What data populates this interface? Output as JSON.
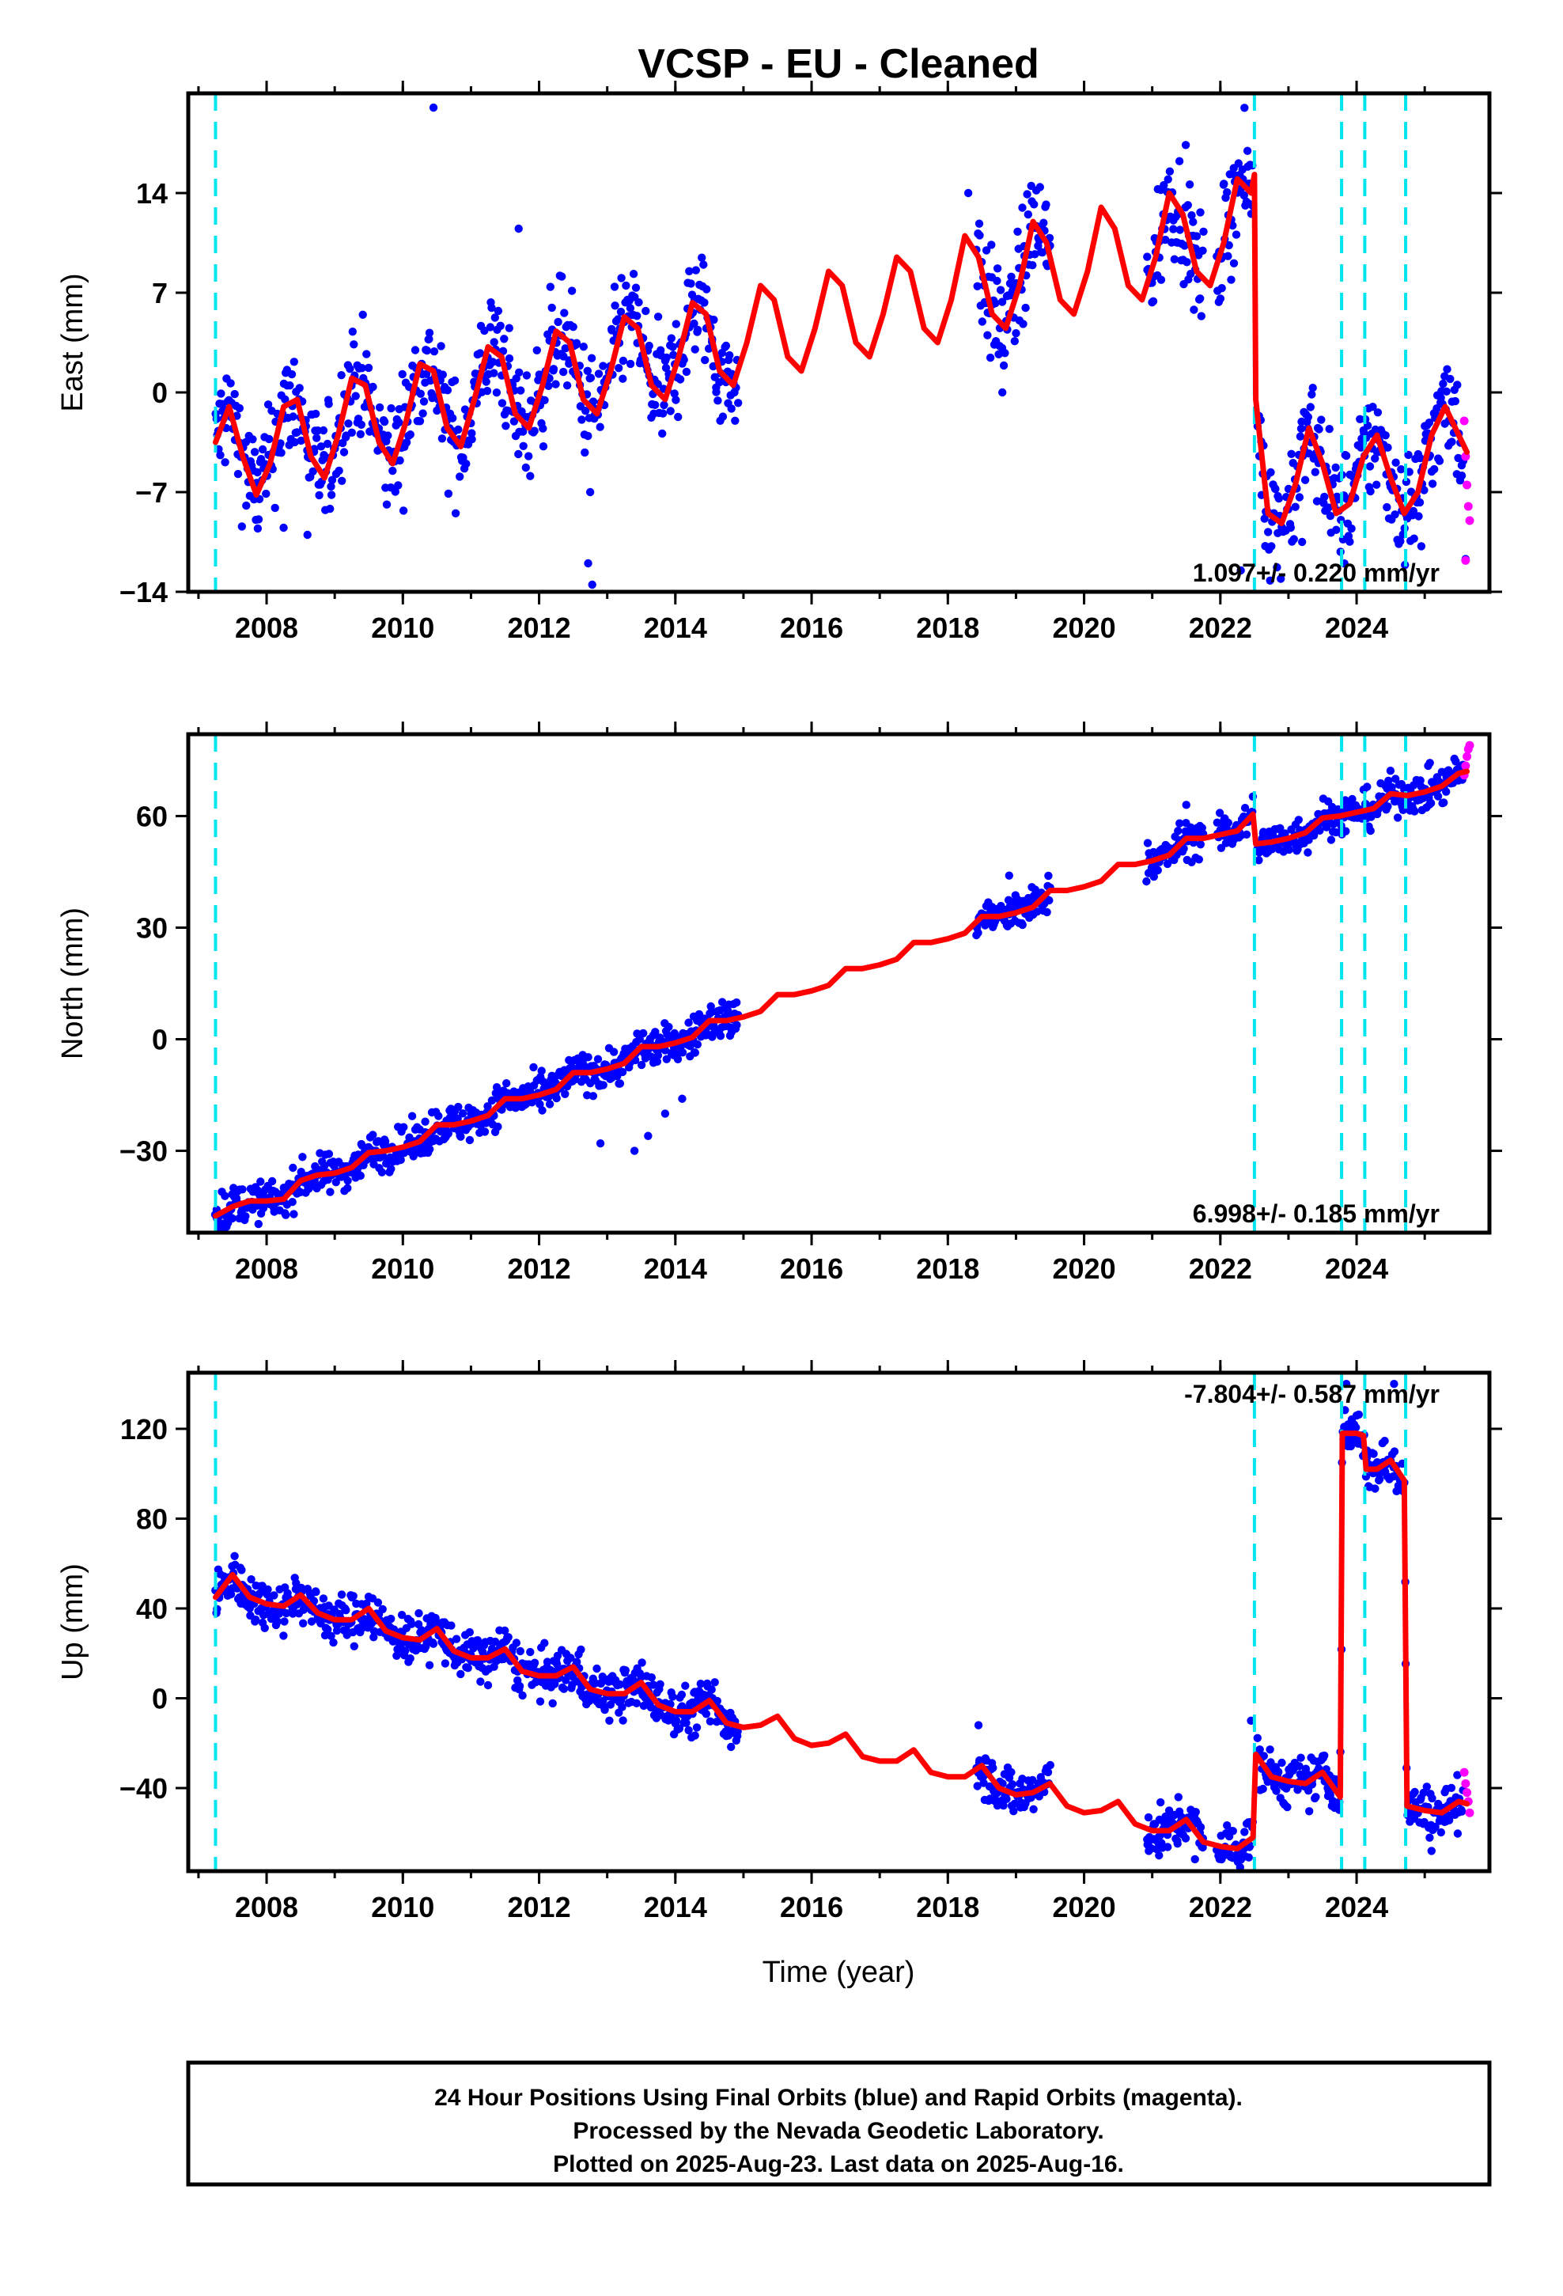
{
  "title": "VCSP  - EU - Cleaned",
  "xlabel": "Time (year)",
  "footnote": {
    "line1": "24 Hour Positions Using Final Orbits (blue) and Rapid Orbits (magenta).",
    "line2": "Processed by the Nevada Geodetic Laboratory.",
    "line3": "Plotted on 2025-Aug-23. Last data on 2025-Aug-16."
  },
  "colors": {
    "final_orbits": "#0000ff",
    "rapid_orbits": "#ff00ff",
    "model": "#ff0000",
    "event_lines": "#00e5ee"
  },
  "chart_data": [
    {
      "type": "scatter",
      "name": "east",
      "ylabel": "East (mm)",
      "rate": "1.097+/- 0.220 mm/yr",
      "xlim": [
        2006.85,
        2025.95
      ],
      "ylim": [
        -14,
        21
      ],
      "x_ticks": [
        2008,
        2010,
        2012,
        2014,
        2016,
        2018,
        2020,
        2022,
        2024
      ],
      "y_ticks": [
        -14,
        -7,
        0,
        7,
        14
      ],
      "y_tick_labels": [
        "−14",
        "−7",
        "0",
        "7",
        "14"
      ],
      "grid": false,
      "events": [
        2007.25,
        2022.5,
        2023.78,
        2024.12,
        2024.72
      ],
      "model": {
        "x": [
          2007.25,
          2007.45,
          2007.65,
          2007.85,
          2008.05,
          2008.25,
          2008.45,
          2008.65,
          2008.85,
          2009.05,
          2009.25,
          2009.45,
          2009.65,
          2009.85,
          2010.05,
          2010.25,
          2010.45,
          2010.65,
          2010.85,
          2011.05,
          2011.25,
          2011.45,
          2011.65,
          2011.85,
          2012.05,
          2012.25,
          2012.45,
          2012.65,
          2012.85,
          2013.05,
          2013.25,
          2013.45,
          2013.65,
          2013.85,
          2014.05,
          2014.25,
          2014.45,
          2014.65,
          2014.85,
          2015.05,
          2015.25,
          2015.45,
          2015.65,
          2015.85,
          2016.05,
          2016.25,
          2016.45,
          2016.65,
          2016.85,
          2017.05,
          2017.25,
          2017.45,
          2017.65,
          2017.85,
          2018.05,
          2018.25,
          2018.45,
          2018.65,
          2018.85,
          2019.05,
          2019.25,
          2019.45,
          2019.65,
          2019.85,
          2020.05,
          2020.25,
          2020.45,
          2020.65,
          2020.85,
          2021.05,
          2021.25,
          2021.45,
          2021.65,
          2021.85,
          2022.05,
          2022.25,
          2022.45,
          2022.5,
          2022.52,
          2022.7,
          2022.9,
          2023.1,
          2023.3,
          2023.5,
          2023.7,
          2023.9,
          2024.1,
          2024.3,
          2024.5,
          2024.7,
          2024.9,
          2025.1,
          2025.3,
          2025.5,
          2025.62
        ],
        "y": [
          -3.5,
          -1.0,
          -4.5,
          -7.2,
          -5.0,
          -1.0,
          -0.5,
          -4.5,
          -6.0,
          -3.0,
          1.0,
          0.5,
          -3.5,
          -5.0,
          -2.0,
          2.0,
          1.5,
          -2.5,
          -3.8,
          -0.5,
          3.2,
          2.5,
          -1.5,
          -2.5,
          0.5,
          4.3,
          3.5,
          -0.5,
          -1.5,
          1.5,
          5.3,
          4.5,
          0.5,
          -0.5,
          2.5,
          6.3,
          5.5,
          1.5,
          0.5,
          3.5,
          7.5,
          6.5,
          2.5,
          1.5,
          4.5,
          8.5,
          7.5,
          3.5,
          2.5,
          5.5,
          9.5,
          8.5,
          4.5,
          3.5,
          6.5,
          11.0,
          9.5,
          5.5,
          4.5,
          7.5,
          12.0,
          10.5,
          6.5,
          5.5,
          8.5,
          13.0,
          11.5,
          7.5,
          6.5,
          9.5,
          14.0,
          12.5,
          8.5,
          7.5,
          10.5,
          15.0,
          14.0,
          15.3,
          -0.5,
          -8.5,
          -9.2,
          -6.5,
          -2.5,
          -5.0,
          -8.5,
          -7.8,
          -4.5,
          -3.0,
          -6.0,
          -8.5,
          -7.0,
          -3.0,
          -1.0,
          -3.0,
          -4.2
        ]
      },
      "outliers": [
        {
          "x": 2010.45,
          "y": 20.0
        },
        {
          "x": 2012.72,
          "y": -12.0
        },
        {
          "x": 2012.78,
          "y": -13.5
        },
        {
          "x": 2012.75,
          "y": -7.0
        },
        {
          "x": 2008.25,
          "y": -9.5
        },
        {
          "x": 2018.3,
          "y": 14.0
        },
        {
          "x": 2021.6,
          "y": 11.0
        },
        {
          "x": 2022.3,
          "y": -12.5
        },
        {
          "x": 2023.2,
          "y": -10.5
        },
        {
          "x": 2024.95,
          "y": -10.8
        },
        {
          "x": 2025.6,
          "y": -11.7
        },
        {
          "x": 2018.8,
          "y": 0.0
        },
        {
          "x": 2011.7,
          "y": 11.5
        },
        {
          "x": 2008.6,
          "y": -10.0
        }
      ],
      "rapid": {
        "x": [
          2025.58,
          2025.6,
          2025.62,
          2025.64,
          2025.66,
          2025.6
        ],
        "y": [
          -2.0,
          -4.5,
          -6.5,
          -8.0,
          -9.0,
          -11.8
        ]
      }
    },
    {
      "type": "scatter",
      "name": "north",
      "ylabel": "North (mm)",
      "rate": "6.998+/- 0.185 mm/yr",
      "xlim": [
        2006.85,
        2025.95
      ],
      "ylim": [
        -52,
        82
      ],
      "x_ticks": [
        2008,
        2010,
        2012,
        2014,
        2016,
        2018,
        2020,
        2022,
        2024
      ],
      "y_ticks": [
        -30,
        0,
        30,
        60
      ],
      "y_tick_labels": [
        "−30",
        "0",
        "30",
        "60"
      ],
      "grid": false,
      "events": [
        2007.25,
        2022.5,
        2023.78,
        2024.12,
        2024.72
      ],
      "model": {
        "x": [
          2007.25,
          2007.5,
          2007.75,
          2008.0,
          2008.25,
          2008.5,
          2008.75,
          2009.0,
          2009.25,
          2009.5,
          2009.75,
          2010.0,
          2010.25,
          2010.5,
          2010.75,
          2011.0,
          2011.25,
          2011.5,
          2011.75,
          2012.0,
          2012.25,
          2012.5,
          2012.75,
          2013.0,
          2013.25,
          2013.5,
          2013.75,
          2014.0,
          2014.25,
          2014.5,
          2014.75,
          2015.0,
          2015.25,
          2015.5,
          2015.75,
          2016.0,
          2016.25,
          2016.5,
          2016.75,
          2017.0,
          2017.25,
          2017.5,
          2017.75,
          2018.0,
          2018.25,
          2018.5,
          2018.75,
          2019.0,
          2019.25,
          2019.5,
          2019.75,
          2020.0,
          2020.25,
          2020.5,
          2020.75,
          2021.0,
          2021.25,
          2021.5,
          2021.75,
          2022.0,
          2022.25,
          2022.48,
          2022.52,
          2022.75,
          2023.0,
          2023.25,
          2023.5,
          2023.75,
          2024.0,
          2024.25,
          2024.5,
          2024.75,
          2025.0,
          2025.25,
          2025.5,
          2025.62
        ],
        "y": [
          -47.5,
          -45.0,
          -43.5,
          -43.5,
          -43.0,
          -38.0,
          -36.5,
          -36.0,
          -34.5,
          -30.5,
          -30.0,
          -29.0,
          -27.5,
          -23.0,
          -23.0,
          -22.0,
          -20.5,
          -16.0,
          -16.0,
          -15.0,
          -13.5,
          -9.0,
          -9.0,
          -8.0,
          -6.5,
          -2.0,
          -2.0,
          -1.0,
          0.5,
          5.0,
          5.0,
          6.0,
          7.5,
          12.0,
          12.0,
          13.0,
          14.5,
          19.0,
          19.0,
          20.0,
          21.5,
          26.0,
          26.0,
          27.0,
          28.5,
          33.0,
          33.0,
          34.0,
          35.5,
          40.0,
          40.0,
          41.0,
          42.5,
          47.0,
          47.0,
          48.0,
          49.5,
          54.0,
          54.0,
          55.0,
          56.0,
          60.5,
          52.5,
          53.0,
          54.0,
          55.5,
          59.5,
          60.0,
          61.0,
          62.0,
          66.0,
          65.5,
          66.5,
          68.0,
          71.5,
          72.0
        ]
      },
      "outliers": [
        {
          "x": 2013.4,
          "y": -30.0
        },
        {
          "x": 2013.6,
          "y": -26.0
        },
        {
          "x": 2013.85,
          "y": -20.0
        },
        {
          "x": 2014.1,
          "y": -16.0
        },
        {
          "x": 2018.9,
          "y": 44.0
        },
        {
          "x": 2021.5,
          "y": 63.0
        },
        {
          "x": 2012.9,
          "y": -28.0
        },
        {
          "x": 2007.8,
          "y": -41.0
        }
      ],
      "rapid": {
        "x": [
          2025.58,
          2025.6,
          2025.62,
          2025.64,
          2025.66
        ],
        "y": [
          71.0,
          73.5,
          76.0,
          78.0,
          79.0
        ]
      }
    },
    {
      "type": "scatter",
      "name": "up",
      "ylabel": "Up (mm)",
      "rate": "-7.804+/- 0.587 mm/yr",
      "xlim": [
        2006.85,
        2025.95
      ],
      "ylim": [
        -77,
        145
      ],
      "x_ticks": [
        2008,
        2010,
        2012,
        2014,
        2016,
        2018,
        2020,
        2022,
        2024
      ],
      "y_ticks": [
        -40,
        0,
        40,
        80,
        120
      ],
      "y_tick_labels": [
        "−40",
        "0",
        "40",
        "80",
        "120"
      ],
      "grid": false,
      "events": [
        2007.25,
        2022.5,
        2023.78,
        2024.12,
        2024.72
      ],
      "model": {
        "x": [
          2007.25,
          2007.5,
          2007.75,
          2008.0,
          2008.25,
          2008.5,
          2008.75,
          2009.0,
          2009.25,
          2009.5,
          2009.75,
          2010.0,
          2010.25,
          2010.5,
          2010.75,
          2011.0,
          2011.25,
          2011.5,
          2011.75,
          2012.0,
          2012.25,
          2012.5,
          2012.75,
          2013.0,
          2013.25,
          2013.5,
          2013.75,
          2014.0,
          2014.25,
          2014.5,
          2014.75,
          2015.0,
          2015.25,
          2015.5,
          2015.75,
          2016.0,
          2016.25,
          2016.5,
          2016.75,
          2017.0,
          2017.25,
          2017.5,
          2017.75,
          2018.0,
          2018.25,
          2018.5,
          2018.75,
          2019.0,
          2019.25,
          2019.5,
          2019.75,
          2020.0,
          2020.25,
          2020.5,
          2020.75,
          2021.0,
          2021.25,
          2021.5,
          2021.75,
          2022.0,
          2022.25,
          2022.48,
          2022.52,
          2022.75,
          2023.0,
          2023.25,
          2023.5,
          2023.76,
          2023.79,
          2024.0,
          2024.1,
          2024.14,
          2024.3,
          2024.5,
          2024.7,
          2024.74,
          2025.0,
          2025.25,
          2025.5,
          2025.62
        ],
        "y": [
          45.0,
          55.0,
          45.0,
          42.0,
          41.0,
          46.0,
          38.0,
          35.0,
          35.0,
          40.0,
          30.0,
          27.0,
          26.0,
          31.0,
          21.0,
          18.0,
          18.0,
          22.0,
          12.0,
          10.0,
          10.0,
          14.0,
          4.0,
          2.0,
          2.0,
          7.0,
          -3.0,
          -6.0,
          -6.0,
          -1.0,
          -11.0,
          -13.0,
          -12.0,
          -8.0,
          -18.0,
          -21.0,
          -20.0,
          -16.0,
          -26.0,
          -28.0,
          -28.0,
          -23.0,
          -33.0,
          -35.0,
          -35.0,
          -30.0,
          -40.0,
          -43.0,
          -42.0,
          -38.0,
          -48.0,
          -51.0,
          -50.0,
          -46.0,
          -56.0,
          -59.0,
          -59.0,
          -54.0,
          -64.0,
          -66.0,
          -67.0,
          -62.0,
          -25.0,
          -35.0,
          -37.0,
          -38.0,
          -33.0,
          -44.0,
          118.0,
          118.0,
          117.0,
          102.0,
          102.0,
          106.0,
          97.0,
          -48.0,
          -50.0,
          -51.0,
          -46.0,
          -47.0
        ]
      },
      "outliers": [
        {
          "x": 2021.1,
          "y": -70.0
        },
        {
          "x": 2020.95,
          "y": -68.0
        },
        {
          "x": 2023.85,
          "y": 140.0
        },
        {
          "x": 2024.55,
          "y": 140.0
        },
        {
          "x": 2018.45,
          "y": -12.0
        },
        {
          "x": 2022.45,
          "y": -10.0
        },
        {
          "x": 2025.1,
          "y": -68.0
        }
      ],
      "rapid": {
        "x": [
          2025.58,
          2025.6,
          2025.62,
          2025.64,
          2025.66
        ],
        "y": [
          -33.0,
          -38.0,
          -42.0,
          -46.0,
          -51.0
        ]
      }
    }
  ]
}
